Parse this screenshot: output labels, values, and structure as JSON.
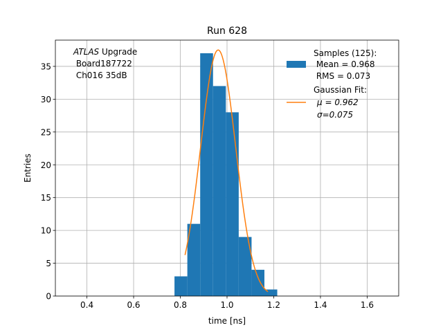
{
  "chart_data": {
    "type": "bar",
    "title": "Run 628",
    "xlabel": "time [ns]",
    "ylabel": "Entries",
    "xlim": [
      0.265,
      1.735
    ],
    "ylim": [
      0,
      39
    ],
    "xticks": [
      0.4,
      0.6,
      0.8,
      1.0,
      1.2,
      1.4,
      1.6
    ],
    "xtick_labels": [
      "0.4",
      "0.6",
      "0.8",
      "1.0",
      "1.2",
      "1.4",
      "1.6"
    ],
    "yticks": [
      0,
      5,
      10,
      15,
      20,
      25,
      30,
      35
    ],
    "ytick_labels": [
      "0",
      "5",
      "10",
      "15",
      "20",
      "25",
      "30",
      "35"
    ],
    "grid": true,
    "legend_position": "top-right",
    "annotation_lines": [
      "ATLAS Upgrade",
      " Board187722",
      " Ch016 35dB"
    ],
    "series": [
      {
        "name": "Samples (125):",
        "legend_lines": [
          "Samples (125):",
          " Mean = 0.968",
          " RMS = 0.073"
        ],
        "kind": "histogram",
        "color": "#1f77b4",
        "bin_edges": [
          0.775,
          0.83,
          0.885,
          0.94,
          0.995,
          1.05,
          1.105,
          1.16,
          1.215
        ],
        "values": [
          3,
          11,
          37,
          32,
          28,
          9,
          4,
          1
        ]
      },
      {
        "name": "Gaussian Fit:",
        "legend_lines": [
          "Gaussian Fit:",
          "μ = 0.962",
          "σ=0.075"
        ],
        "kind": "line",
        "color": "#ff7f0e",
        "fit": {
          "amplitude": 37.5,
          "mu": 0.962,
          "sigma": 0.075,
          "x_range": [
            0.82,
            1.175
          ]
        }
      }
    ]
  }
}
